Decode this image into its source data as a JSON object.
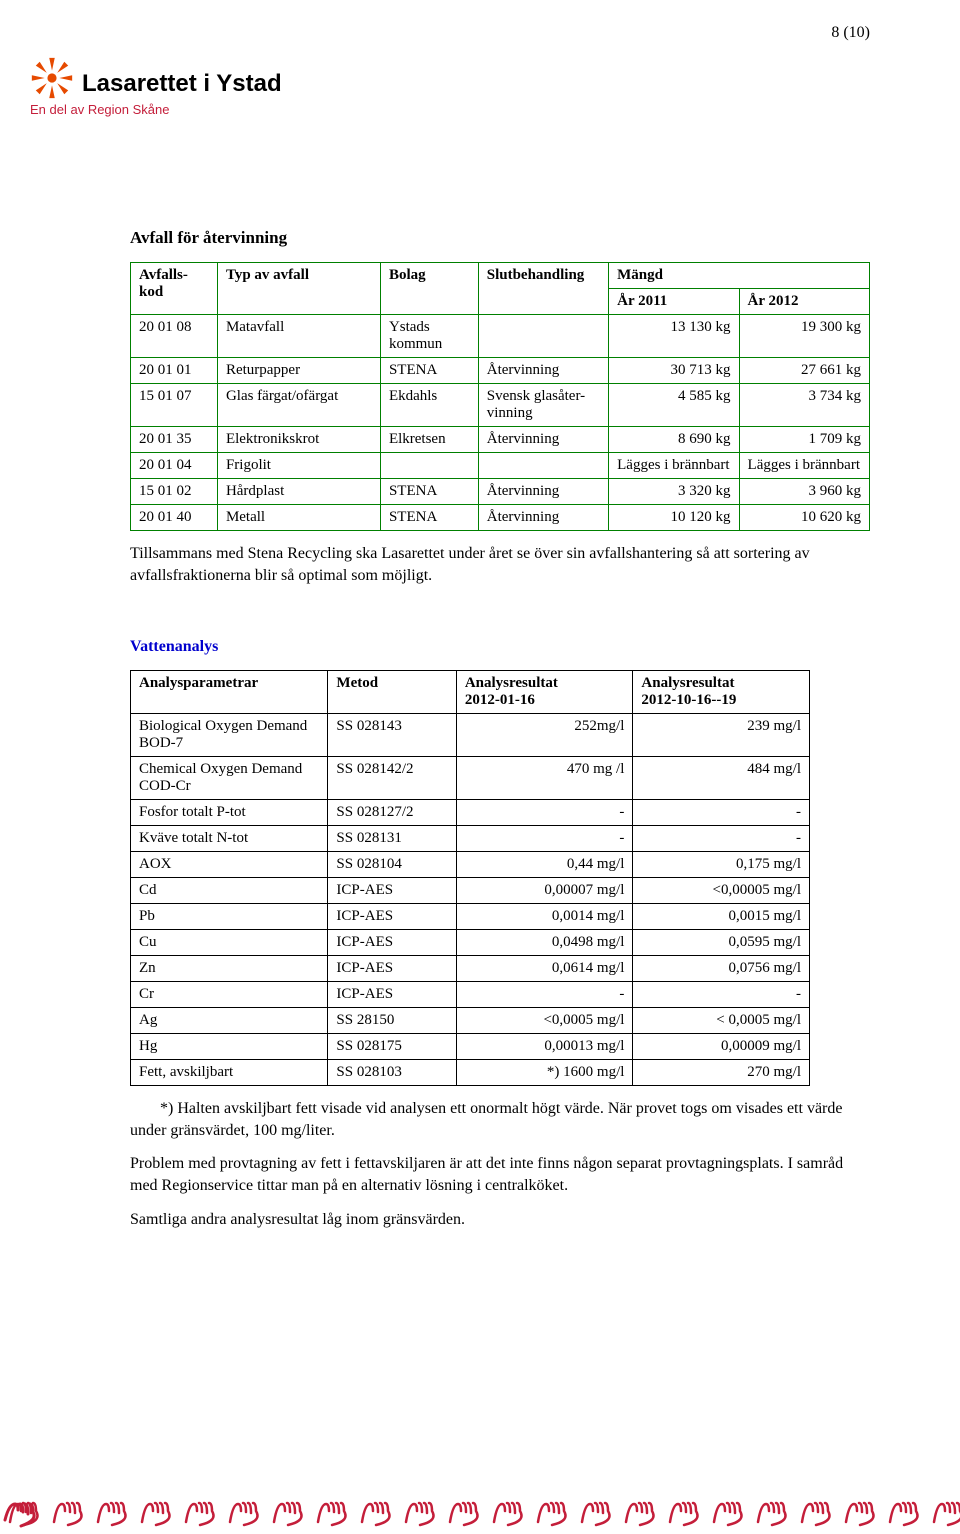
{
  "page_number": "8 (10)",
  "logo": {
    "name": "Lasarettet i Ystad",
    "subtitle": "En del av Region Skåne",
    "main_color": "#c41e3a",
    "accent": "#e64a00"
  },
  "section_avfall_title": "Avfall för återvinning",
  "avfall_table": {
    "col_widths": [
      "80px",
      "150px",
      "90px",
      "120px",
      "120px",
      "120px"
    ],
    "headers": [
      "Avfalls-\nkod",
      "Typ av avfall",
      "Bolag",
      "Slutbehandling",
      "Mängd\nÅr 2011",
      "\nÅr 2012"
    ],
    "rows": [
      {
        "code": "20 01 08",
        "type": "Matavfall",
        "bolag": "Ystads kommun",
        "slut": "",
        "y2011": "13 130 kg",
        "y2012": "19 300 kg"
      },
      {
        "code": "20 01 01",
        "type": "Returpapper",
        "bolag": "STENA",
        "slut": "Återvinning",
        "y2011": "30 713 kg",
        "y2012": "27 661 kg"
      },
      {
        "code": "15 01 07",
        "type": "Glas färgat/ofärgat",
        "bolag": "Ekdahls",
        "slut": "Svensk glasåter-vinning",
        "y2011": "4 585 kg",
        "y2012": "3 734 kg"
      },
      {
        "code": "20 01 35",
        "type": "Elektronikskrot",
        "bolag": "Elkretsen",
        "slut": "Återvinning",
        "y2011": "8 690 kg",
        "y2012": "1 709 kg"
      },
      {
        "code": "20 01 04",
        "type": "Frigolit",
        "bolag": "",
        "slut": "",
        "y2011": "Lägges i brännbart",
        "y2012": "Lägges  i brännbart"
      },
      {
        "code": "15 01 02",
        "type": "Hårdplast",
        "bolag": "STENA",
        "slut": "Återvinning",
        "y2011": "3 320 kg",
        "y2012": "3 960 kg"
      },
      {
        "code": "20 01 40",
        "type": "Metall",
        "bolag": "STENA",
        "slut": "Återvinning",
        "y2011": "10 120 kg",
        "y2012": "10 620 kg"
      }
    ],
    "border_color": "#008000"
  },
  "avfall_paragraph": "Tillsammans med Stena Recycling ska Lasarettet under året se över sin avfallshantering så att sortering av avfallsfraktionerna blir så optimal som möjligt.",
  "section_water_title": "Vattenanalys",
  "water_table": {
    "headers": [
      "Analysparametrar",
      "Metod",
      "Analysresultat\n2012-01-16",
      "Analysresultat\n2012-10-16--19"
    ],
    "rows": [
      {
        "p": "Biological Oxygen Demand BOD-7",
        "m": "SS 028143",
        "r1": "252mg/l",
        "r2": "239 mg/l"
      },
      {
        "p": "Chemical Oxygen Demand COD-Cr",
        "m": "SS 028142/2",
        "r1": "470 mg /l",
        "r2": "484 mg/l"
      },
      {
        "p": "Fosfor totalt P-tot",
        "m": "SS 028127/2",
        "r1": "-",
        "r2": "-"
      },
      {
        "p": "Kväve totalt N-tot",
        "m": "SS 028131",
        "r1": "-",
        "r2": "-"
      },
      {
        "p": "AOX",
        "m": "SS 028104",
        "r1": "0,44 mg/l",
        "r2": "0,175 mg/l"
      },
      {
        "p": "Cd",
        "m": "ICP-AES",
        "r1": "0,00007 mg/l",
        "r2": "<0,00005 mg/l"
      },
      {
        "p": "Pb",
        "m": "ICP-AES",
        "r1": "0,0014 mg/l",
        "r2": "0,0015 mg/l"
      },
      {
        "p": "Cu",
        "m": "ICP-AES",
        "r1": "0,0498 mg/l",
        "r2": "0,0595 mg/l"
      },
      {
        "p": "Zn",
        "m": "ICP-AES",
        "r1": "0,0614 mg/l",
        "r2": "0,0756 mg/l"
      },
      {
        "p": "Cr",
        "m": "ICP-AES",
        "r1": "-",
        "r2": "-"
      },
      {
        "p": "Ag",
        "m": "SS 28150",
        "r1": "<0,0005 mg/l",
        "r2": "< 0,0005 mg/l"
      },
      {
        "p": "Hg",
        "m": "SS 028175",
        "r1": "0,00013 mg/l",
        "r2": "0,00009 mg/l"
      },
      {
        "p": "Fett, avskiljbart",
        "m": "SS 028103",
        "r1": "*) 1600 mg/l",
        "r2": "270 mg/l"
      }
    ],
    "border_color": "#000000"
  },
  "water_note": "*) Halten avskiljbart fett visade vid analysen ett onormalt högt värde. När provet togs om visades ett värde under gränsvärdet, 100 mg/liter.",
  "water_para2": "Problem med provtagning av fett i fettavskiljaren är att det inte finns någon separat provtagningsplats. I samråd med Regionservice tittar man på en alternativ lösning i centralköket.",
  "water_para3": "Samtliga andra analysresultat låg inom gränsvärden.",
  "footer_color": "#c41e3a"
}
